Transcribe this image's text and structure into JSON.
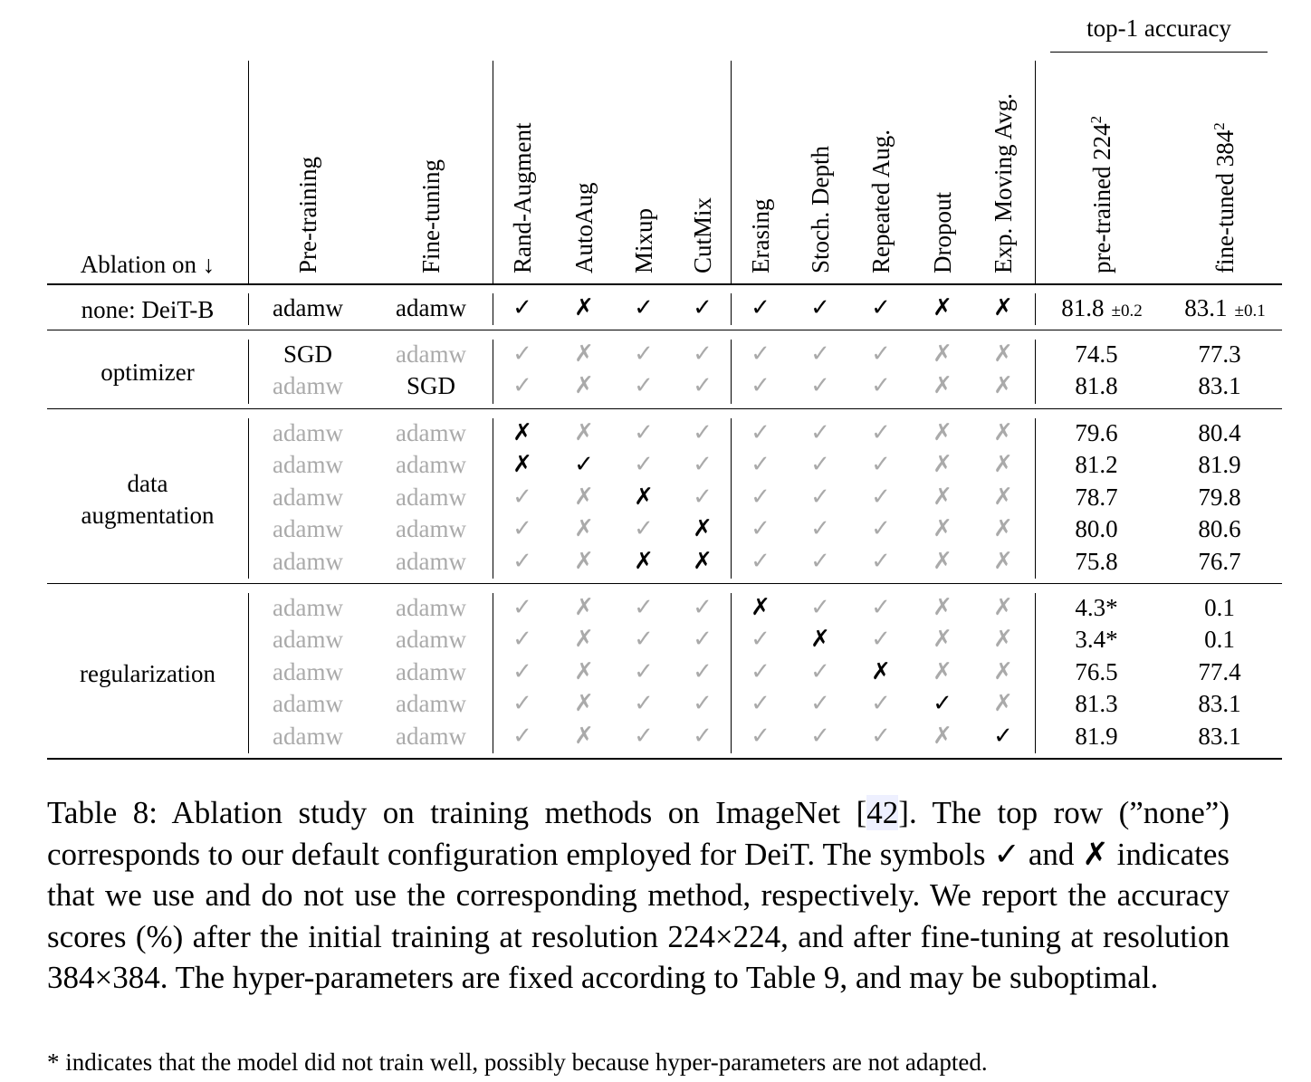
{
  "header": {
    "top1": "top-1 accuracy",
    "ablation": "Ablation on ↓",
    "columns": [
      "Pre-training",
      "Fine-tuning",
      "Rand-Augment",
      "AutoAug",
      "Mixup",
      "CutMix",
      "Erasing",
      "Stoch. Depth",
      "Repeated Aug.",
      "Dropout",
      "Exp. Moving Avg."
    ],
    "acc_columns": [
      {
        "text": "pre-trained 224",
        "sup": "2"
      },
      {
        "text": "fine-tuned 384",
        "sup": "2"
      }
    ]
  },
  "groups": [
    {
      "label_lines": [
        "none: DeiT-B"
      ],
      "rows": [
        {
          "cells": [
            {
              "t": "adamw",
              "g": false
            },
            {
              "t": "adamw",
              "g": false
            },
            {
              "t": "✓",
              "g": false
            },
            {
              "t": "✗",
              "g": false
            },
            {
              "t": "✓",
              "g": false
            },
            {
              "t": "✓",
              "g": false
            },
            {
              "t": "✓",
              "g": false
            },
            {
              "t": "✓",
              "g": false
            },
            {
              "t": "✓",
              "g": false
            },
            {
              "t": "✗",
              "g": false
            },
            {
              "t": "✗",
              "g": false
            }
          ],
          "acc1": "81.8",
          "acc1_pm": "±0.2",
          "acc2": "83.1",
          "acc2_pm": "±0.1"
        }
      ]
    },
    {
      "label_lines": [
        "optimizer"
      ],
      "rows": [
        {
          "cells": [
            {
              "t": "SGD",
              "g": false
            },
            {
              "t": "adamw",
              "g": true
            },
            {
              "t": "✓",
              "g": true
            },
            {
              "t": "✗",
              "g": true
            },
            {
              "t": "✓",
              "g": true
            },
            {
              "t": "✓",
              "g": true
            },
            {
              "t": "✓",
              "g": true
            },
            {
              "t": "✓",
              "g": true
            },
            {
              "t": "✓",
              "g": true
            },
            {
              "t": "✗",
              "g": true
            },
            {
              "t": "✗",
              "g": true
            }
          ],
          "acc1": "74.5",
          "acc2": "77.3"
        },
        {
          "cells": [
            {
              "t": "adamw",
              "g": true
            },
            {
              "t": "SGD",
              "g": false
            },
            {
              "t": "✓",
              "g": true
            },
            {
              "t": "✗",
              "g": true
            },
            {
              "t": "✓",
              "g": true
            },
            {
              "t": "✓",
              "g": true
            },
            {
              "t": "✓",
              "g": true
            },
            {
              "t": "✓",
              "g": true
            },
            {
              "t": "✓",
              "g": true
            },
            {
              "t": "✗",
              "g": true
            },
            {
              "t": "✗",
              "g": true
            }
          ],
          "acc1": "81.8",
          "acc2": "83.1"
        }
      ]
    },
    {
      "label_lines": [
        "data",
        "augmentation"
      ],
      "rows": [
        {
          "cells": [
            {
              "t": "adamw",
              "g": true
            },
            {
              "t": "adamw",
              "g": true
            },
            {
              "t": "✗",
              "g": false
            },
            {
              "t": "✗",
              "g": true
            },
            {
              "t": "✓",
              "g": true
            },
            {
              "t": "✓",
              "g": true
            },
            {
              "t": "✓",
              "g": true
            },
            {
              "t": "✓",
              "g": true
            },
            {
              "t": "✓",
              "g": true
            },
            {
              "t": "✗",
              "g": true
            },
            {
              "t": "✗",
              "g": true
            }
          ],
          "acc1": "79.6",
          "acc2": "80.4"
        },
        {
          "cells": [
            {
              "t": "adamw",
              "g": true
            },
            {
              "t": "adamw",
              "g": true
            },
            {
              "t": "✗",
              "g": false
            },
            {
              "t": "✓",
              "g": false
            },
            {
              "t": "✓",
              "g": true
            },
            {
              "t": "✓",
              "g": true
            },
            {
              "t": "✓",
              "g": true
            },
            {
              "t": "✓",
              "g": true
            },
            {
              "t": "✓",
              "g": true
            },
            {
              "t": "✗",
              "g": true
            },
            {
              "t": "✗",
              "g": true
            }
          ],
          "acc1": "81.2",
          "acc2": "81.9"
        },
        {
          "cells": [
            {
              "t": "adamw",
              "g": true
            },
            {
              "t": "adamw",
              "g": true
            },
            {
              "t": "✓",
              "g": true
            },
            {
              "t": "✗",
              "g": true
            },
            {
              "t": "✗",
              "g": false
            },
            {
              "t": "✓",
              "g": true
            },
            {
              "t": "✓",
              "g": true
            },
            {
              "t": "✓",
              "g": true
            },
            {
              "t": "✓",
              "g": true
            },
            {
              "t": "✗",
              "g": true
            },
            {
              "t": "✗",
              "g": true
            }
          ],
          "acc1": "78.7",
          "acc2": "79.8"
        },
        {
          "cells": [
            {
              "t": "adamw",
              "g": true
            },
            {
              "t": "adamw",
              "g": true
            },
            {
              "t": "✓",
              "g": true
            },
            {
              "t": "✗",
              "g": true
            },
            {
              "t": "✓",
              "g": true
            },
            {
              "t": "✗",
              "g": false
            },
            {
              "t": "✓",
              "g": true
            },
            {
              "t": "✓",
              "g": true
            },
            {
              "t": "✓",
              "g": true
            },
            {
              "t": "✗",
              "g": true
            },
            {
              "t": "✗",
              "g": true
            }
          ],
          "acc1": "80.0",
          "acc2": "80.6"
        },
        {
          "cells": [
            {
              "t": "adamw",
              "g": true
            },
            {
              "t": "adamw",
              "g": true
            },
            {
              "t": "✓",
              "g": true
            },
            {
              "t": "✗",
              "g": true
            },
            {
              "t": "✗",
              "g": false
            },
            {
              "t": "✗",
              "g": false
            },
            {
              "t": "✓",
              "g": true
            },
            {
              "t": "✓",
              "g": true
            },
            {
              "t": "✓",
              "g": true
            },
            {
              "t": "✗",
              "g": true
            },
            {
              "t": "✗",
              "g": true
            }
          ],
          "acc1": "75.8",
          "acc2": "76.7"
        }
      ]
    },
    {
      "label_lines": [
        "regularization"
      ],
      "rows": [
        {
          "cells": [
            {
              "t": "adamw",
              "g": true
            },
            {
              "t": "adamw",
              "g": true
            },
            {
              "t": "✓",
              "g": true
            },
            {
              "t": "✗",
              "g": true
            },
            {
              "t": "✓",
              "g": true
            },
            {
              "t": "✓",
              "g": true
            },
            {
              "t": "✗",
              "g": false
            },
            {
              "t": "✓",
              "g": true
            },
            {
              "t": "✓",
              "g": true
            },
            {
              "t": "✗",
              "g": true
            },
            {
              "t": "✗",
              "g": true
            }
          ],
          "acc1": "4.3*",
          "acc2": "0.1"
        },
        {
          "cells": [
            {
              "t": "adamw",
              "g": true
            },
            {
              "t": "adamw",
              "g": true
            },
            {
              "t": "✓",
              "g": true
            },
            {
              "t": "✗",
              "g": true
            },
            {
              "t": "✓",
              "g": true
            },
            {
              "t": "✓",
              "g": true
            },
            {
              "t": "✓",
              "g": true
            },
            {
              "t": "✗",
              "g": false
            },
            {
              "t": "✓",
              "g": true
            },
            {
              "t": "✗",
              "g": true
            },
            {
              "t": "✗",
              "g": true
            }
          ],
          "acc1": "3.4*",
          "acc2": "0.1"
        },
        {
          "cells": [
            {
              "t": "adamw",
              "g": true
            },
            {
              "t": "adamw",
              "g": true
            },
            {
              "t": "✓",
              "g": true
            },
            {
              "t": "✗",
              "g": true
            },
            {
              "t": "✓",
              "g": true
            },
            {
              "t": "✓",
              "g": true
            },
            {
              "t": "✓",
              "g": true
            },
            {
              "t": "✓",
              "g": true
            },
            {
              "t": "✗",
              "g": false
            },
            {
              "t": "✗",
              "g": true
            },
            {
              "t": "✗",
              "g": true
            }
          ],
          "acc1": "76.5",
          "acc2": "77.4"
        },
        {
          "cells": [
            {
              "t": "adamw",
              "g": true
            },
            {
              "t": "adamw",
              "g": true
            },
            {
              "t": "✓",
              "g": true
            },
            {
              "t": "✗",
              "g": true
            },
            {
              "t": "✓",
              "g": true
            },
            {
              "t": "✓",
              "g": true
            },
            {
              "t": "✓",
              "g": true
            },
            {
              "t": "✓",
              "g": true
            },
            {
              "t": "✓",
              "g": true
            },
            {
              "t": "✓",
              "g": false
            },
            {
              "t": "✗",
              "g": true
            }
          ],
          "acc1": "81.3",
          "acc2": "83.1"
        },
        {
          "cells": [
            {
              "t": "adamw",
              "g": true
            },
            {
              "t": "adamw",
              "g": true
            },
            {
              "t": "✓",
              "g": true
            },
            {
              "t": "✗",
              "g": true
            },
            {
              "t": "✓",
              "g": true
            },
            {
              "t": "✓",
              "g": true
            },
            {
              "t": "✓",
              "g": true
            },
            {
              "t": "✓",
              "g": true
            },
            {
              "t": "✓",
              "g": true
            },
            {
              "t": "✗",
              "g": true
            },
            {
              "t": "✓",
              "g": false
            }
          ],
          "acc1": "81.9",
          "acc2": "83.1"
        }
      ]
    }
  ],
  "caption": {
    "part1": "Table 8: Ablation study on training methods on ImageNet [",
    "ref": "42",
    "part2": "]. The top row (”none”) corresponds to our default configuration employed for DeiT. The symbols ✓ and ✗ indicates that we use and do not use the corresponding method, respectively. We report the accuracy scores (%) after the initial training at resolution 224×224, and after fine-tuning at resolution 384×384. The hyper-parameters are fixed according to Table 9, and may be suboptimal."
  },
  "footnote": "* indicates that the model did not train well, possibly because hyper-parameters are not adapted.",
  "colors": {
    "gray": "#aaaaaa",
    "ref_bg": "#eef0ff"
  }
}
